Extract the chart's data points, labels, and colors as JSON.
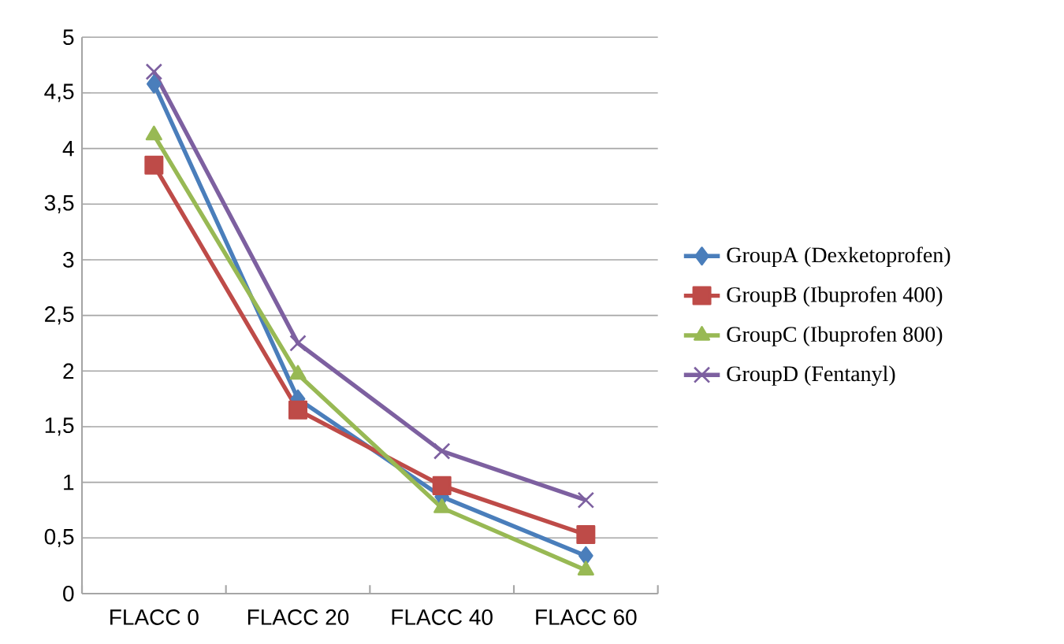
{
  "chart_data": {
    "type": "line",
    "categories": [
      "FLACC 0",
      "FLACC 20",
      "FLACC 40",
      "FLACC 60"
    ],
    "series": [
      {
        "name": "GroupA (Dexketoprofen)",
        "color": "#4a7ebb",
        "marker": "diamond",
        "values": [
          4.58,
          1.75,
          0.87,
          0.34
        ]
      },
      {
        "name": "GroupB (Ibuprofen 400)",
        "color": "#be4b48",
        "marker": "square",
        "values": [
          3.85,
          1.65,
          0.97,
          0.53
        ]
      },
      {
        "name": "GroupC (Ibuprofen 800)",
        "color": "#98b954",
        "marker": "triangle",
        "values": [
          4.12,
          1.97,
          0.77,
          0.21
        ]
      },
      {
        "name": "GroupD (Fentanyl)",
        "color": "#7d60a0",
        "marker": "cross",
        "values": [
          4.69,
          2.25,
          1.28,
          0.84
        ]
      }
    ],
    "ylim": [
      0,
      5
    ],
    "yticks": [
      0,
      {
        "value": 0.5,
        "label": "0,5"
      },
      1,
      {
        "value": 1.5,
        "label": "1,5"
      },
      2,
      {
        "value": 2.5,
        "label": "2,5"
      },
      3,
      {
        "value": 3.5,
        "label": "3,5"
      },
      4,
      {
        "value": 4.5,
        "label": "4,5"
      },
      5
    ],
    "grid": "y",
    "legend": "right",
    "line_style": "solid"
  }
}
